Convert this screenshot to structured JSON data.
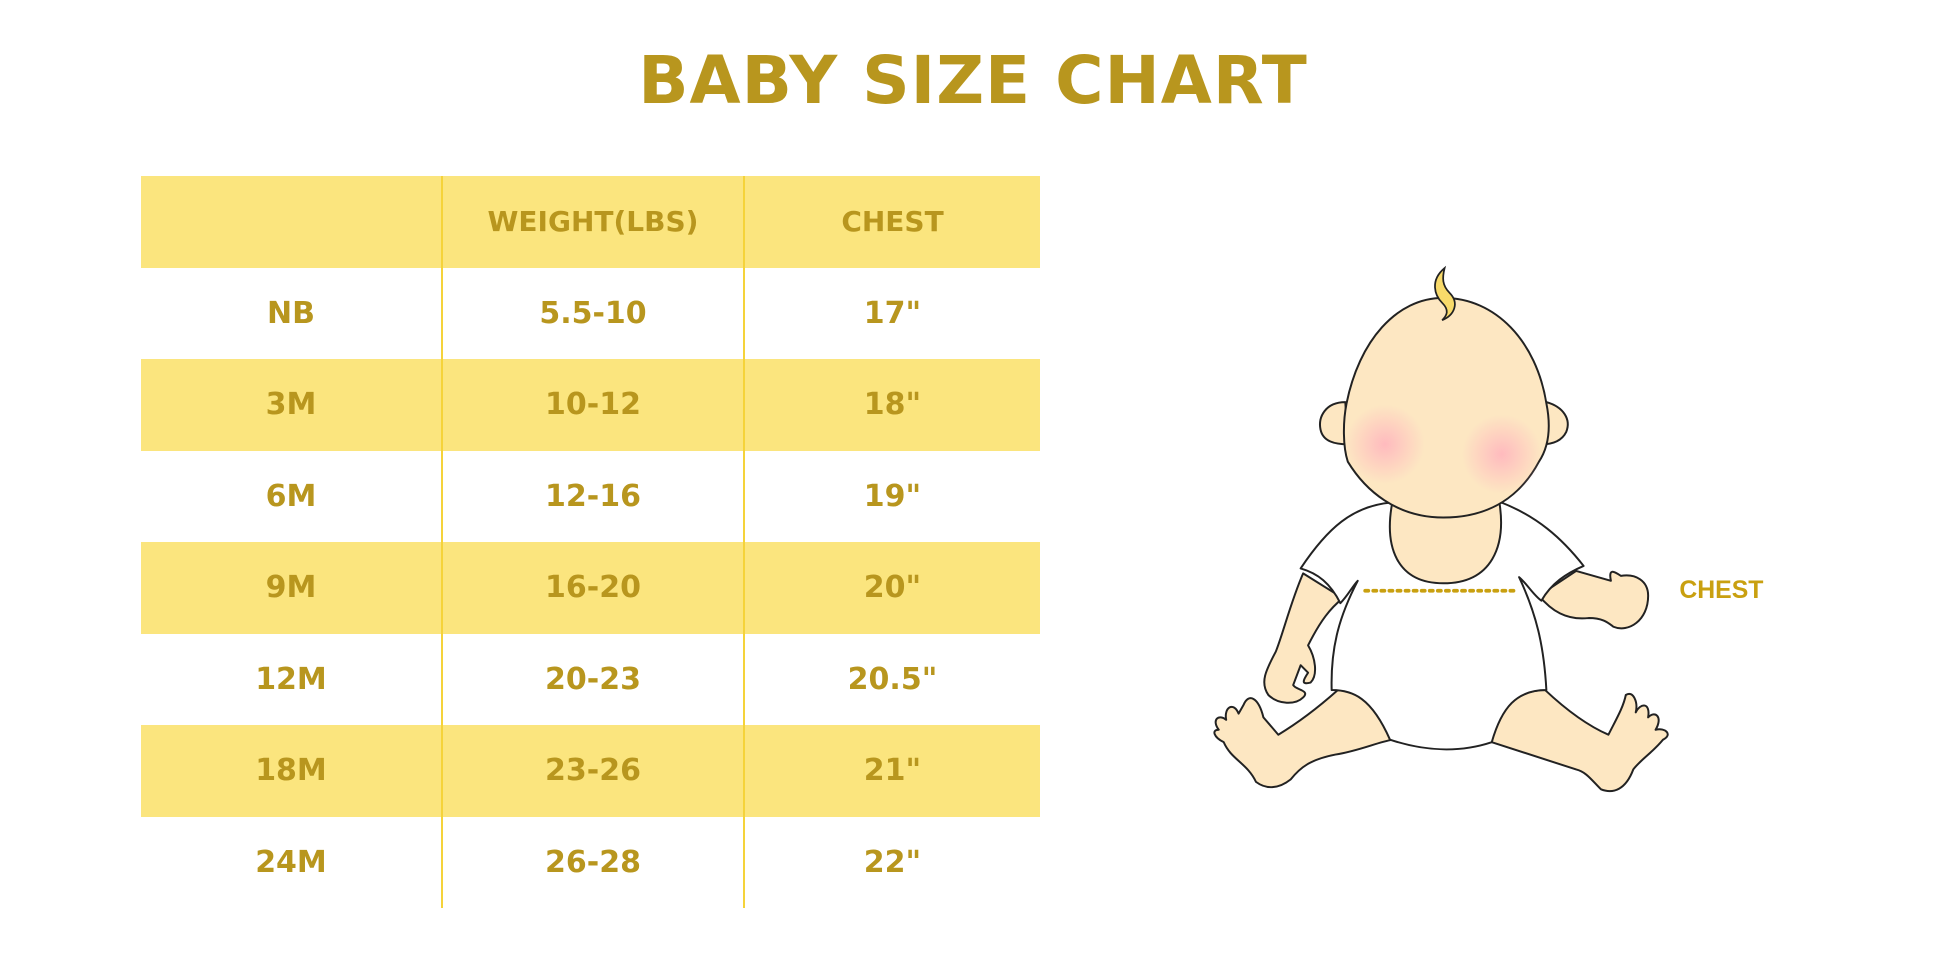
{
  "title": "BABY SIZE CHART",
  "table": {
    "headers": [
      "",
      "WEIGHT(LBS)",
      "CHEST"
    ],
    "rows": [
      {
        "size": "NB",
        "weight": "5.5-10",
        "chest": "17\""
      },
      {
        "size": "3M",
        "weight": "10-12",
        "chest": "18\""
      },
      {
        "size": "6M",
        "weight": "12-16",
        "chest": "19\""
      },
      {
        "size": "9M",
        "weight": "16-20",
        "chest": "20\""
      },
      {
        "size": "12M",
        "weight": "20-23",
        "chest": "20.5\""
      },
      {
        "size": "18M",
        "weight": "23-26",
        "chest": "21\""
      },
      {
        "size": "24M",
        "weight": "26-28",
        "chest": "22\""
      }
    ]
  },
  "illustration": {
    "chest_label": "CHEST"
  },
  "colors": {
    "text": "#B8961E",
    "band": "#FBE57E",
    "divider": "#F5D33A",
    "skin": "#FDE7C2",
    "chest_label": "#C9A010"
  }
}
